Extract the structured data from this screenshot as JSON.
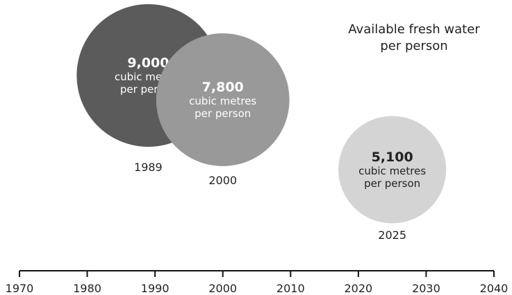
{
  "chart_data": {
    "type": "bubble",
    "title": "Available fresh water\nper person",
    "unit_label": "cubic metres\nper person",
    "series": [
      {
        "year": 1989,
        "year_label": "1989",
        "value": 9000,
        "value_label": "9,000",
        "color": "#5b5b5c",
        "text_color": "#ffffff"
      },
      {
        "year": 2000,
        "year_label": "2000",
        "value": 7800,
        "value_label": "7,800",
        "color": "#999999",
        "text_color": "#ffffff"
      },
      {
        "year": 2025,
        "year_label": "2025",
        "value": 5100,
        "value_label": "5,100",
        "color": "#d4d4d4",
        "text_color": "#222222"
      }
    ],
    "x_axis": {
      "range": [
        1970,
        2040
      ],
      "ticks": [
        "1970",
        "1980",
        "1990",
        "2000",
        "2010",
        "2020",
        "2030",
        "2040"
      ]
    }
  }
}
